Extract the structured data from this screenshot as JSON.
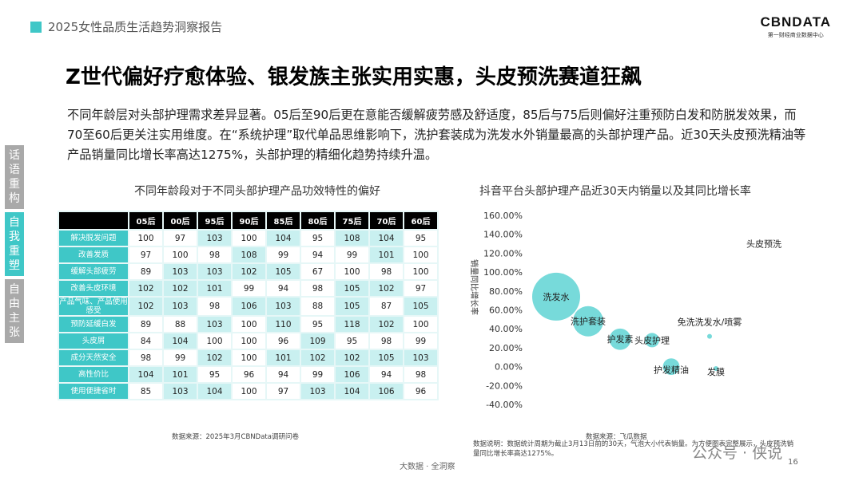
{
  "header": {
    "report_title": "2025女性品质生活趋势洞察报告",
    "logo_main": "CBNDATA",
    "logo_sub": "第一财经商业数据中心"
  },
  "main_title": "Z世代偏好疗愈体验、银发族主张实用实惠，头皮预洗赛道狂飙",
  "summary": "不同年龄层对头部护理需求差异显著。05后至90后更在意能否缓解疲劳感及舒适度，85后与75后则偏好注重预防白发和防脱发效果，而70至60后更关注实用维度。在“系统护理”取代单品思维影响下，洗护套装成为洗发水外销量最高的头部护理产品。近30天头皮预洗精油等产品销量同比增长率高达1275%，头部护理的精细化趋势持续升温。",
  "side_nav": [
    {
      "label": "话语重构",
      "active": false
    },
    {
      "label": "自我重塑",
      "active": true
    },
    {
      "label": "自由主张",
      "active": false
    }
  ],
  "heatmap": {
    "title": "不同年龄段对于不同头部护理产品功效特性的偏好",
    "source": "数据来源：2025年3月CBNData调研问卷"
  },
  "bubble": {
    "title": "抖音平台头部护理产品近30天内销量以及其同比增长率",
    "source": "数据来源：飞瓜数据",
    "note": "数据说明：数据统计周期为截止3月13日前的30天，气泡大小代表销量。为方便图表完整展示，头皮预洗销量同比增长率高达1275%。"
  },
  "footer": "大数据 · 全洞察",
  "page_number": "16",
  "watermark": "公众号 · 侠说",
  "colors": {
    "accent": "#3fc7c7",
    "cell_high": "#c9f0f0",
    "cell_low": "#ffffff",
    "header_bg": "#000000",
    "bubble_fill": "#5fd3d3"
  },
  "chart_data": [
    {
      "type": "heatmap",
      "title": "不同年龄段对于不同头部护理产品功效特性的偏好",
      "columns": [
        "05后",
        "00后",
        "95后",
        "90后",
        "85后",
        "80后",
        "75后",
        "70后",
        "60后"
      ],
      "rows": [
        "解决脱发问题",
        "改善发质",
        "缓解头部疲劳",
        "改善头皮环境",
        "产品气味、产品使用感受",
        "预防延缓白发",
        "头皮屑",
        "成分天然安全",
        "高性价比",
        "使用便捷省时"
      ],
      "values": [
        [
          100,
          97,
          103,
          100,
          104,
          95,
          108,
          104,
          95
        ],
        [
          97,
          100,
          98,
          108,
          99,
          94,
          99,
          101,
          100
        ],
        [
          89,
          103,
          103,
          102,
          105,
          67,
          100,
          98,
          100
        ],
        [
          102,
          102,
          101,
          99,
          94,
          98,
          105,
          102,
          97
        ],
        [
          102,
          103,
          98,
          106,
          103,
          88,
          105,
          87,
          105
        ],
        [
          89,
          88,
          103,
          100,
          110,
          95,
          118,
          102,
          100
        ],
        [
          84,
          104,
          100,
          100,
          96,
          109,
          95,
          98,
          99
        ],
        [
          98,
          99,
          102,
          100,
          101,
          102,
          102,
          105,
          103
        ],
        [
          104,
          101,
          95,
          96,
          94,
          99,
          106,
          94,
          98
        ],
        [
          85,
          103,
          104,
          100,
          97,
          103,
          104,
          106,
          96
        ]
      ]
    },
    {
      "type": "scatter",
      "title": "抖音平台头部护理产品近30天内销量以及其同比增长率",
      "ylabel": "销量同比增长率",
      "ylim": [
        -40,
        160
      ],
      "yticks": [
        "160.00%",
        "140.00%",
        "120.00%",
        "100.00%",
        "80.00%",
        "60.00%",
        "40.00%",
        "20.00%",
        "0.00%",
        "-20.00%",
        "-40.00%"
      ],
      "points": [
        {
          "label": "洗发水",
          "x": 1.0,
          "y": 74,
          "size": 100
        },
        {
          "label": "洗护套装",
          "x": 2.0,
          "y": 48,
          "size": 40
        },
        {
          "label": "护发素",
          "x": 3.0,
          "y": 29,
          "size": 20
        },
        {
          "label": "头皮护理",
          "x": 4.0,
          "y": 28,
          "size": 9
        },
        {
          "label": "护发精油",
          "x": 4.6,
          "y": 0,
          "size": 12
        },
        {
          "label": "免洗洗发水/喷雾",
          "x": 5.8,
          "y": 32,
          "size": 1
        },
        {
          "label": "发膜",
          "x": 6.0,
          "y": -2,
          "size": 1
        },
        {
          "label": "头皮预洗",
          "x": 7.5,
          "y": 130,
          "size": 0
        }
      ]
    }
  ]
}
